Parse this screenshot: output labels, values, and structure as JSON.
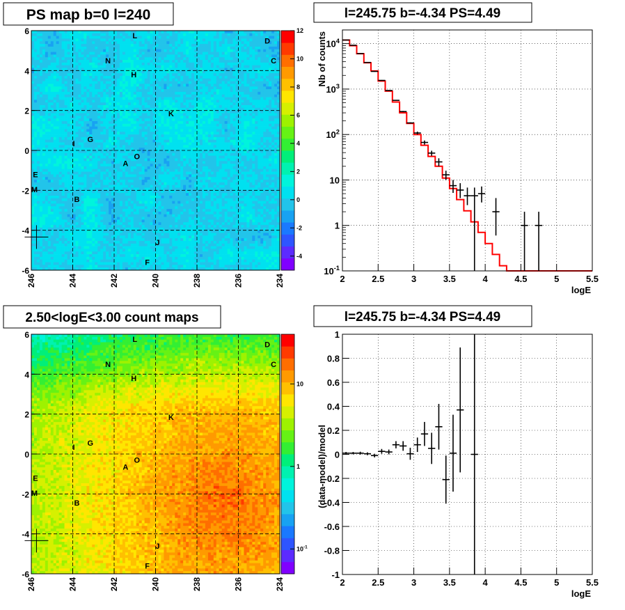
{
  "panels": {
    "ps_map": {
      "title": "PS map b=0 l=240"
    },
    "spectrum": {
      "title": "l=245.75 b=-4.34 PS=4.49"
    },
    "count_map": {
      "title": "2.50<logE<3.00 count maps"
    },
    "residuals": {
      "title": "l=245.75 b=-4.34 PS=4.49"
    }
  },
  "source_labels": [
    {
      "name": "L",
      "l": 241.0,
      "b": 5.75
    },
    {
      "name": "D",
      "l": 234.6,
      "b": 5.5
    },
    {
      "name": "N",
      "l": 242.3,
      "b": 4.5
    },
    {
      "name": "C",
      "l": 234.3,
      "b": 4.5
    },
    {
      "name": "H",
      "l": 241.05,
      "b": 3.8
    },
    {
      "name": "K",
      "l": 239.25,
      "b": 1.85
    },
    {
      "name": "G",
      "l": 243.15,
      "b": 0.55
    },
    {
      "name": "I",
      "l": 243.95,
      "b": 0.35
    },
    {
      "name": "O",
      "l": 240.9,
      "b": -0.3
    },
    {
      "name": "A",
      "l": 241.45,
      "b": -0.65
    },
    {
      "name": "E",
      "l": 245.8,
      "b": -1.2
    },
    {
      "name": "M",
      "l": 245.85,
      "b": -1.95
    },
    {
      "name": "B",
      "l": 243.8,
      "b": -2.45
    },
    {
      "name": "J",
      "l": 239.9,
      "b": -4.6
    },
    {
      "name": "F",
      "l": 240.4,
      "b": -5.6
    }
  ],
  "marker": {
    "l": 245.75,
    "b": -4.34
  },
  "colors": {
    "palette": [
      "#8000ff",
      "#5c2bff",
      "#2e55ff",
      "#1a79ff",
      "#18a2f2",
      "#22c4ea",
      "#00e1f0",
      "#00f4dc",
      "#00f2b0",
      "#00ef7a",
      "#33ef33",
      "#66f215",
      "#9ef200",
      "#d6f000",
      "#ffe600",
      "#ffc000",
      "#ff9a00",
      "#ff6e00",
      "#ff3a00",
      "#ff0000"
    ],
    "model_line": "#ff0000",
    "data_points": "#000000"
  },
  "chart_data": [
    {
      "type": "heatmap",
      "title": "PS map b=0 l=240",
      "xlabel": "",
      "ylabel": "",
      "xlim": [
        246,
        234
      ],
      "ylim": [
        -6,
        6
      ],
      "x_ticks": [
        "246",
        "244",
        "242",
        "240",
        "238",
        "236",
        "234"
      ],
      "y_ticks": [
        "-6",
        "-4",
        "-2",
        "0",
        "2",
        "4",
        "6"
      ],
      "colorbar": {
        "scale": "linear",
        "range": [
          -5,
          12
        ],
        "ticks": [
          "-4",
          "-2",
          "0",
          "2",
          "4",
          "6",
          "8",
          "10",
          "12"
        ]
      },
      "grid": true
    },
    {
      "type": "line",
      "title": "l=245.75 b=-4.34 PS=4.49",
      "xlabel": "logE",
      "ylabel": "Nb of counts",
      "xlim": [
        2,
        5.5
      ],
      "ylim": [
        0.1,
        20000
      ],
      "yscale": "log",
      "x_ticks": [
        "2",
        "2.5",
        "3",
        "3.5",
        "4",
        "4.5",
        "5",
        "5.5"
      ],
      "y_ticks": [
        "10^-1",
        "1",
        "10",
        "10^2",
        "10^3",
        "10^4"
      ],
      "grid": true,
      "series": [
        {
          "kind": "step",
          "x_edges": [
            2.0,
            2.1,
            2.2,
            2.3,
            2.4,
            2.5,
            2.6,
            2.7,
            2.8,
            2.9,
            3.0,
            3.1,
            3.2,
            3.3,
            3.4,
            3.5,
            3.6,
            3.7,
            3.8,
            3.9,
            4.0,
            4.1,
            4.2,
            4.3,
            4.4,
            4.5,
            4.6,
            4.7,
            4.8,
            4.9,
            5.0,
            5.1,
            5.2,
            5.3,
            5.4,
            5.5
          ],
          "values": [
            12000,
            9000,
            6000,
            3800,
            2500,
            1500,
            900,
            520,
            300,
            175,
            100,
            58,
            33,
            20,
            11,
            6.5,
            3.7,
            2.1,
            1.2,
            0.7,
            0.4,
            0.23,
            0.13,
            0.1,
            0.1,
            0.1,
            0.1,
            0.1,
            0.1,
            0.1,
            0.1,
            0.1,
            0.1,
            0.1,
            0.1
          ]
        },
        {
          "kind": "points",
          "x": [
            2.05,
            2.15,
            2.25,
            2.35,
            2.45,
            2.55,
            2.65,
            2.75,
            2.85,
            2.95,
            3.05,
            3.15,
            3.25,
            3.35,
            3.45,
            3.55,
            3.65,
            3.75,
            3.85,
            3.95,
            4.15,
            4.55,
            4.75
          ],
          "y": [
            12000,
            9200,
            6050,
            3850,
            2450,
            1550,
            930,
            565,
            320,
            180,
            108,
            67,
            39,
            25,
            13,
            7.5,
            6,
            4.5,
            4.5,
            5,
            2,
            1,
            1
          ],
          "ylow": [
            11900,
            9100,
            5950,
            3780,
            2400,
            1520,
            910,
            555,
            310,
            175,
            100,
            60,
            34,
            20,
            10,
            5.2,
            4,
            2.8,
            0.1,
            3.2,
            0.6,
            0.1,
            0.1
          ],
          "yhigh": [
            12100,
            9300,
            6150,
            3920,
            2500,
            1580,
            950,
            575,
            330,
            185,
            116,
            74,
            44,
            30,
            16,
            10,
            8.5,
            6.8,
            6.8,
            7.2,
            4,
            2,
            2
          ]
        }
      ]
    },
    {
      "type": "heatmap",
      "title": "2.50<logE<3.00 count maps",
      "xlabel": "",
      "ylabel": "",
      "xlim": [
        246,
        234
      ],
      "ylim": [
        -6,
        6
      ],
      "x_ticks": [
        "246",
        "244",
        "242",
        "240",
        "238",
        "236",
        "234"
      ],
      "y_ticks": [
        "-6",
        "-4",
        "-2",
        "0",
        "2",
        "4",
        "6"
      ],
      "colorbar": {
        "scale": "log",
        "range": [
          0.05,
          40
        ],
        "ticks": [
          "10^-1",
          "1",
          "10"
        ]
      },
      "grid": true
    },
    {
      "type": "scatter",
      "title": "l=245.75 b=-4.34 PS=4.49",
      "xlabel": "logE",
      "ylabel": "(data-model)/model",
      "xlim": [
        2,
        5.5
      ],
      "ylim": [
        -1,
        1
      ],
      "x_ticks": [
        "2",
        "2.5",
        "3",
        "3.5",
        "4",
        "4.5",
        "5",
        "5.5"
      ],
      "y_ticks": [
        "-1",
        "-0.8",
        "-0.6",
        "-0.4",
        "-0.2",
        "0",
        "0.2",
        "0.4",
        "0.6",
        "0.8",
        "1"
      ],
      "grid": true,
      "series": [
        {
          "x": [
            2.05,
            2.15,
            2.25,
            2.35,
            2.45,
            2.55,
            2.65,
            2.75,
            2.85,
            2.95,
            3.05,
            3.15,
            3.25,
            3.35,
            3.45,
            3.55,
            3.65,
            3.85
          ],
          "y": [
            0.01,
            0.01,
            0.01,
            0.005,
            -0.01,
            0.025,
            0.02,
            0.08,
            0.07,
            0.005,
            0.08,
            0.17,
            0.05,
            0.23,
            -0.21,
            0.01,
            0.37,
            0.0
          ],
          "err": [
            0.01,
            0.01,
            0.012,
            0.012,
            0.015,
            0.02,
            0.02,
            0.03,
            0.04,
            0.05,
            0.06,
            0.1,
            0.13,
            0.19,
            0.2,
            0.32,
            0.52,
            1.0
          ]
        }
      ]
    }
  ]
}
